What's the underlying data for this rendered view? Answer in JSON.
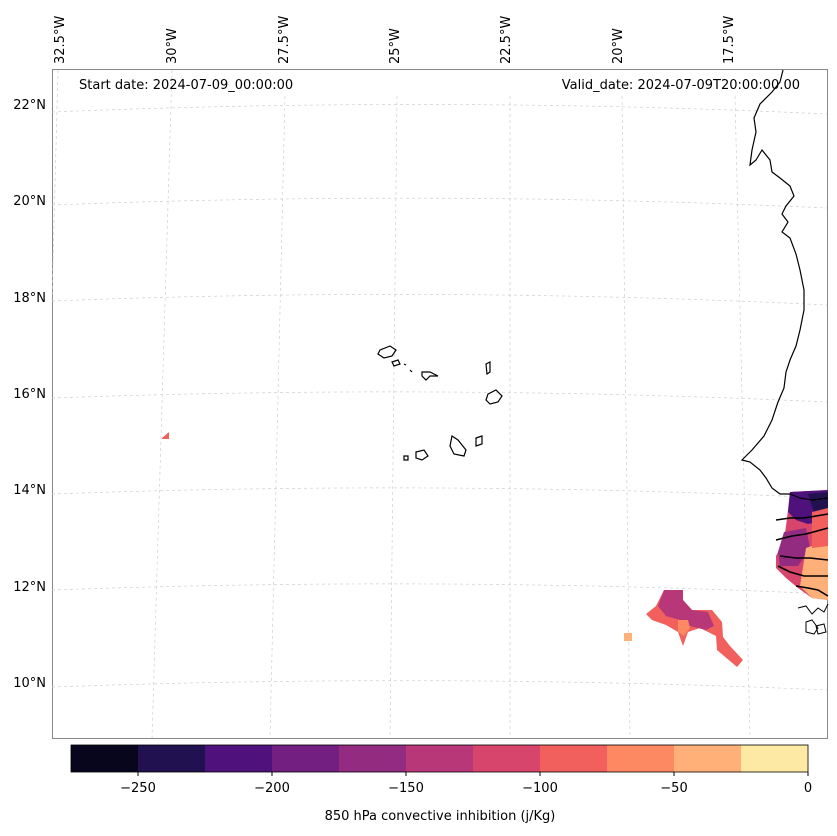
{
  "header": {
    "start_date": "Start date: 2024-07-09_00:00:00",
    "valid_date": "Valid_date: 2024-07-09T20:00:00.00"
  },
  "map": {
    "longitude_labels": [
      "32.5°W",
      "30°W",
      "27.5°W",
      "25°W",
      "22.5°W",
      "20°W",
      "17.5°W"
    ],
    "latitude_labels": [
      "22°N",
      "20°N",
      "18°N",
      "16°N",
      "14°N",
      "12°N",
      "10°N"
    ],
    "gridlines": "dashed light gray",
    "coastline_color": "#000000",
    "field": "850 hPa convective inhibition",
    "features": [
      "Cabo Verde islands",
      "West African coast (Senegal, Gambia, Guinea-Bissau)"
    ]
  },
  "colorbar": {
    "label": "850 hPa convective inhibition (j/Kg)",
    "ticks": [
      "−250",
      "−200",
      "−150",
      "−100",
      "−50",
      "0"
    ],
    "tick_values": [
      -250,
      -200,
      -150,
      -100,
      -50,
      0
    ],
    "range": [
      -275,
      0
    ],
    "colors": [
      "#07061c",
      "#221150",
      "#4f117b",
      "#721f81",
      "#932b80",
      "#b73779",
      "#d8456c",
      "#f1605d",
      "#fc8961",
      "#feb078",
      "#fde8a4"
    ]
  }
}
